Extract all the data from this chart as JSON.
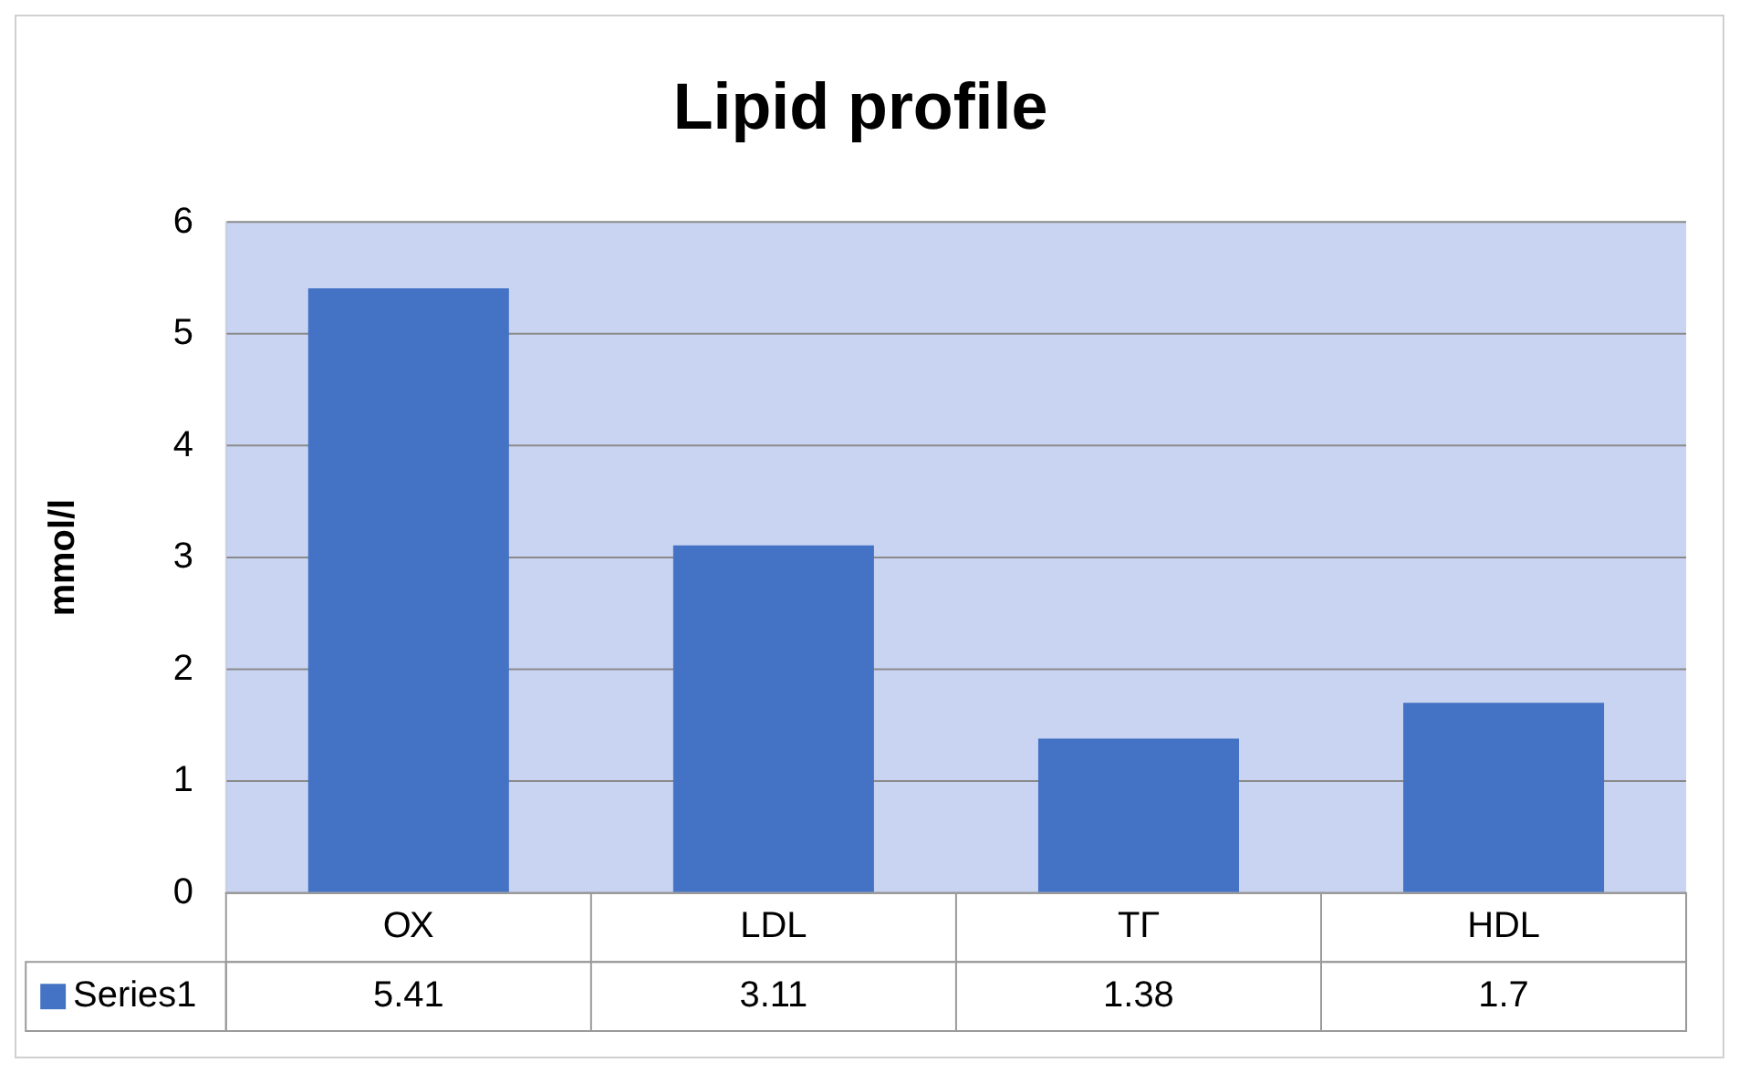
{
  "chart_data": {
    "type": "bar",
    "title": "Lipid profile",
    "ylabel": "mmol/l",
    "categories": [
      "ОХ",
      "LDL",
      "ТГ",
      "HDL"
    ],
    "series": [
      {
        "name": "Series1",
        "color": "#4472c4",
        "values": [
          5.41,
          3.11,
          1.38,
          1.7
        ]
      }
    ],
    "ylim": [
      0,
      6
    ],
    "yticks": [
      0,
      1,
      2,
      3,
      4,
      5,
      6
    ],
    "grid": "y",
    "legend": "bottom",
    "data_labels": true
  }
}
